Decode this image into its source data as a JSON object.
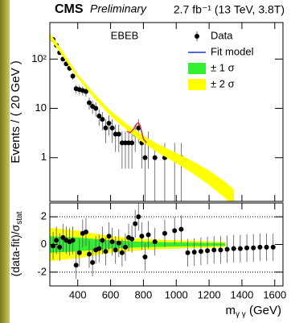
{
  "chart_data": [
    {
      "type": "scatter",
      "title": "CMS",
      "subtitle": "Preliminary",
      "lumi": "2.7 fb⁻¹ (13 TeV, 3.8T)",
      "annotation": "EBEB",
      "ylabel": "Events / ( 20 GeV )",
      "log_y": true,
      "legend": "top-right",
      "xlim": [
        230,
        1650
      ],
      "xticks": [
        400,
        600,
        800,
        1000,
        1200,
        1400,
        1600
      ],
      "ylim": [
        0.13,
        550
      ],
      "yticks": [
        {
          "value": 1,
          "label": "1"
        },
        {
          "value": 10,
          "label": "10"
        },
        {
          "value": 100,
          "label": "10²"
        }
      ],
      "series": [
        {
          "name": "Data",
          "color": "#000000",
          "x": [
            250,
            270,
            290,
            310,
            330,
            350,
            370,
            390,
            410,
            430,
            450,
            470,
            490,
            510,
            530,
            550,
            570,
            590,
            610,
            630,
            650,
            670,
            690,
            710,
            730,
            750,
            770,
            790,
            810,
            830,
            870,
            930,
            990,
            1030
          ],
          "values": [
            250,
            190,
            135,
            100,
            80,
            65,
            45,
            25,
            24,
            23,
            22,
            13,
            11,
            10,
            7,
            6,
            4,
            5,
            4,
            3,
            3,
            2,
            2,
            2,
            2,
            3,
            4,
            2,
            1,
            2,
            1,
            1,
            1,
            1
          ],
          "errors": [
            15.8,
            13.8,
            11.6,
            10,
            8.9,
            8.1,
            6.7,
            5,
            4.9,
            4.8,
            4.7,
            3.6,
            3.3,
            3.2,
            2.6,
            2.4,
            2,
            2.2,
            2,
            1.7,
            1.7,
            1.4,
            1.4,
            1.4,
            1.4,
            1.7,
            2,
            1.4,
            1,
            1.4,
            1,
            1,
            1,
            1
          ]
        },
        {
          "name": "Fit model",
          "color": "#2233cc",
          "x": [
            230,
            300,
            400,
            500,
            600,
            700,
            800,
            900,
            1000,
            1100,
            1200,
            1300,
            1350
          ],
          "values": [
            300,
            140,
            45,
            18,
            8,
            4.2,
            2.4,
            1.5,
            1.0,
            0.65,
            0.4,
            0.22,
            0.15
          ]
        },
        {
          "name": "± 1 σ",
          "color": "#33ee33",
          "x": [
            230,
            300,
            400,
            500,
            600,
            700,
            800,
            900,
            1000,
            1100,
            1200,
            1300,
            1350
          ],
          "lower": [
            280,
            132,
            43,
            17,
            7.5,
            3.9,
            2.2,
            1.35,
            0.88,
            0.56,
            0.34,
            0.18,
            0.12
          ],
          "upper": [
            320,
            148,
            47,
            19,
            8.5,
            4.5,
            2.6,
            1.65,
            1.12,
            0.75,
            0.47,
            0.27,
            0.19
          ]
        },
        {
          "name": "± 2 σ",
          "color": "#ffff00",
          "x": [
            230,
            300,
            400,
            500,
            600,
            700,
            800,
            900,
            1000,
            1100,
            1200,
            1300,
            1350
          ],
          "lower": [
            260,
            125,
            41,
            16,
            7,
            3.6,
            2.0,
            1.2,
            0.78,
            0.48,
            0.28,
            0.15,
            0.1
          ],
          "upper": [
            340,
            156,
            49,
            20,
            9,
            4.8,
            2.8,
            1.8,
            1.25,
            0.85,
            0.55,
            0.32,
            0.23
          ]
        }
      ],
      "signal": {
        "color": "#dd3333",
        "x": [
          700,
          720,
          740,
          760,
          770,
          780,
          790,
          800,
          820
        ],
        "values": [
          3.4,
          3.2,
          3.8,
          4.9,
          5.1,
          4.5,
          3.3,
          2.4,
          2.0
        ]
      }
    },
    {
      "type": "scatter",
      "ylabel": [
        "(data-fit)/σ",
        "stat"
      ],
      "xlabel": [
        "m",
        "γ γ",
        " (GeV)"
      ],
      "xlim": [
        230,
        1650
      ],
      "xticks": [
        400,
        600,
        800,
        1000,
        1200,
        1400,
        1600
      ],
      "ylim": [
        -3,
        3
      ],
      "yticks": [
        -2,
        0,
        2
      ],
      "reference_lines": [
        -2,
        2
      ],
      "series": [
        {
          "color": "#ffff00",
          "x": [
            230,
            400,
            600,
            800,
            1000,
            1300
          ],
          "lower": [
            -1.2,
            -1.0,
            -0.6,
            -0.4,
            -0.3,
            -0.2
          ],
          "upper": [
            1.2,
            1.0,
            0.6,
            0.4,
            0.3,
            0.2
          ]
        },
        {
          "color": "#33ee33",
          "x": [
            230,
            400,
            600,
            800,
            1000,
            1300
          ],
          "lower": [
            -0.6,
            -0.5,
            -0.3,
            -0.2,
            -0.15,
            -0.1
          ],
          "upper": [
            0.6,
            0.5,
            0.3,
            0.2,
            0.15,
            0.1
          ]
        },
        {
          "color": "#000000",
          "x": [
            250,
            270,
            290,
            310,
            330,
            350,
            370,
            390,
            410,
            430,
            450,
            470,
            490,
            510,
            530,
            550,
            570,
            590,
            610,
            630,
            650,
            670,
            690,
            710,
            730,
            750,
            770,
            790,
            810,
            830,
            870,
            930,
            990,
            1030,
            1070,
            1110,
            1150,
            1190,
            1230,
            1270,
            1310,
            1350,
            1390,
            1430,
            1470,
            1510,
            1550,
            1590
          ],
          "values": [
            -0.1,
            0.3,
            -0.2,
            0.5,
            0.3,
            0.2,
            0.3,
            -1.5,
            -0.6,
            0.8,
            0.9,
            -0.7,
            -1.3,
            -0.4,
            -0.3,
            0.3,
            -0.5,
            0.6,
            0.2,
            -0.4,
            0.1,
            -0.6,
            -0.2,
            0.5,
            0.4,
            1.5,
            2.0,
            0.6,
            -0.9,
            0.7,
            0.2,
            0.8,
            1.0,
            1.1,
            -0.6,
            -0.55,
            -0.5,
            -0.45,
            -0.4,
            -0.4,
            -0.35,
            -0.3,
            -0.3,
            -0.25,
            -0.25,
            -0.2,
            -0.2,
            -0.2
          ],
          "errors": [
            1,
            1,
            1,
            1,
            1,
            1,
            1,
            1,
            1,
            1,
            1,
            1,
            1,
            1,
            1,
            1,
            1,
            1,
            1,
            1,
            1,
            1,
            1,
            1,
            1,
            1,
            1,
            1,
            1,
            1,
            1,
            1,
            1,
            1,
            1,
            1,
            1,
            1,
            1,
            1,
            1,
            1,
            1,
            1,
            1,
            1,
            1,
            1
          ]
        }
      ]
    }
  ]
}
